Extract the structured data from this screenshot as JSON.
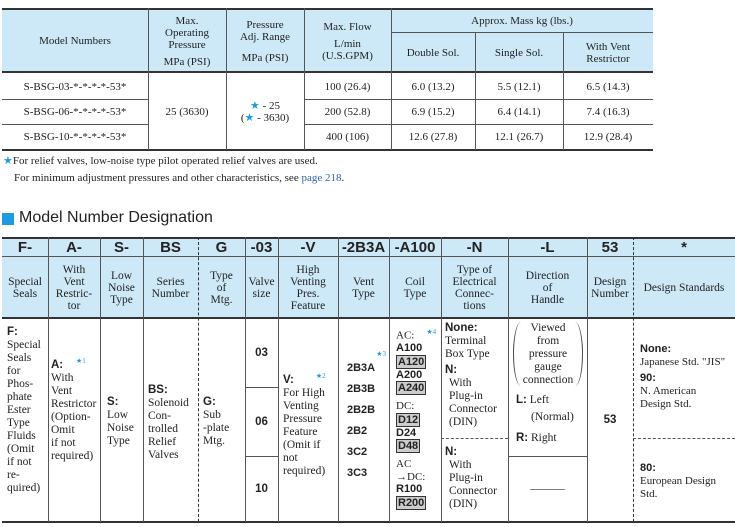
{
  "spec_table": {
    "headers": {
      "model": "Model Numbers",
      "max_pressure": [
        "Max.",
        "Operating",
        "Pressure",
        "MPa (PSI)"
      ],
      "adj_range": [
        "Pressure",
        "Adj. Range",
        "MPa (PSI)"
      ],
      "flow": [
        "Max. Flow",
        "L/min",
        "(U.S.GPM)"
      ],
      "mass_group": "Approx. Mass   kg (lbs.)",
      "double": "Double Sol.",
      "single": "Single Sol.",
      "vent": [
        "With Vent",
        "Restrictor"
      ]
    },
    "rows": [
      {
        "model": "S-BSG-03-*-*-*-*-53*",
        "flow": "100 (26.4)",
        "double": "6.0 (13.2)",
        "single": "5.5 (12.1)",
        "vent": "6.5 (14.3)"
      },
      {
        "model": "S-BSG-06-*-*-*-*-53*",
        "flow": "200 (52.8)",
        "double": "6.9 (15.2)",
        "single": "6.4 (14.1)",
        "vent": "7.4 (16.3)"
      },
      {
        "model": "S-BSG-10-*-*-*-*-53*",
        "flow": "400 (106)",
        "double": "12.6 (27.8)",
        "single": "12.1 (26.7)",
        "vent": "12.9 (28.4)"
      }
    ],
    "max_pressure": "25 (3630)",
    "adj_range": [
      "★ - 25",
      "(★ - 3630)"
    ]
  },
  "footnote": {
    "line1": "For relief valves, low-noise type pilot operated relief valves are used.",
    "line2": "For minimum adjustment pressures and other characteristics, see ",
    "link": "page 218",
    "end": "."
  },
  "section_title": "Model Number Designation",
  "designation": {
    "codes": [
      "F-",
      "A-",
      "S-",
      "BS",
      "G",
      "-03",
      "-V",
      "-2B3A",
      "-A100",
      "-N",
      "-L",
      "53",
      "*"
    ],
    "headers": [
      [
        "Special",
        "Seals"
      ],
      [
        "With",
        "Vent",
        "Restric-",
        "tor"
      ],
      [
        "Low",
        "Noise",
        "Type"
      ],
      [
        "Series",
        "Number"
      ],
      [
        "Type",
        "of",
        "Mtg."
      ],
      [
        "Valve",
        "size"
      ],
      [
        "High",
        "Venting",
        "Pres.",
        "Feature"
      ],
      [
        "Vent",
        "Type"
      ],
      [
        "Coil",
        "Type"
      ],
      [
        "Type of",
        "Electrical",
        "Connec-",
        "tions"
      ],
      [
        "Direction",
        "of",
        "Handle"
      ],
      [
        "Design",
        "Number"
      ],
      [
        "Design Standards"
      ]
    ],
    "f": {
      "code": "F:",
      "desc": [
        "Special",
        "Seals",
        "for",
        "Phos-",
        "phate",
        "Ester",
        "Type",
        "Fluids",
        "(Omit",
        "if not",
        "re-",
        "quired)"
      ]
    },
    "a": {
      "code": "A:",
      "note": "★1",
      "desc": [
        "With",
        "Vent",
        "Restrictor",
        "(Option-",
        "Omit",
        "if not",
        "required)"
      ]
    },
    "s": {
      "code": "S:",
      "desc": [
        "Low",
        "Noise",
        "Type"
      ]
    },
    "bs": {
      "code": "BS:",
      "desc": [
        "Solenoid",
        "Con-",
        "trolled",
        "Relief",
        "Valves"
      ]
    },
    "g": {
      "code": "G:",
      "desc": [
        "Sub",
        "-plate",
        "Mtg."
      ]
    },
    "sizes": [
      "03",
      "06",
      "10"
    ],
    "v": {
      "code": "V:",
      "note": "★2",
      "desc": [
        "For High",
        "Venting",
        "Pressure",
        "Feature",
        "(Omit if",
        "not",
        "required)"
      ]
    },
    "vent": {
      "note": "★3",
      "items": [
        "2B3A",
        "2B3B",
        "2B2B",
        "2B2",
        "3C2",
        "3C3"
      ]
    },
    "coil": {
      "ac_label": "AC:",
      "note": "★4",
      "ac": [
        "A100",
        "A120",
        "A200",
        "A240"
      ],
      "dc_label": "DC:",
      "dc": [
        "D12",
        "D24",
        "D48"
      ],
      "acdc_label": [
        "AC",
        "→DC:"
      ],
      "acdc": [
        "R100",
        "R200"
      ]
    },
    "conn": {
      "none_code": "None:",
      "none_desc": [
        "Terminal",
        "Box Type"
      ],
      "n_code": "N:",
      "n_desc": [
        "With",
        "Plug-in",
        "Connector",
        "(DIN)"
      ],
      "n2_code": "N:",
      "n2_desc": [
        "With",
        "Plug-in",
        "Connector",
        "(DIN)"
      ]
    },
    "handle": {
      "viewed": [
        "Viewed",
        "from",
        "pressure",
        "gauge",
        "connection"
      ],
      "l_code": "L:",
      "l_desc": "Left",
      "l_note": "(Normal)",
      "r_code": "R:",
      "r_desc": "Right",
      "none": "———"
    },
    "design_number": "53",
    "standards": {
      "none_code": "None:",
      "none_desc": "Japanese Std. \"JIS\"",
      "c90": "90:",
      "d90": [
        "N. American",
        "Design Std."
      ],
      "c80": "80:",
      "d80": [
        "European Design",
        "Std."
      ]
    }
  },
  "colors": {
    "header_bg": "#cde9f8",
    "star": "#1e9be0",
    "square": "#1e9be0"
  }
}
